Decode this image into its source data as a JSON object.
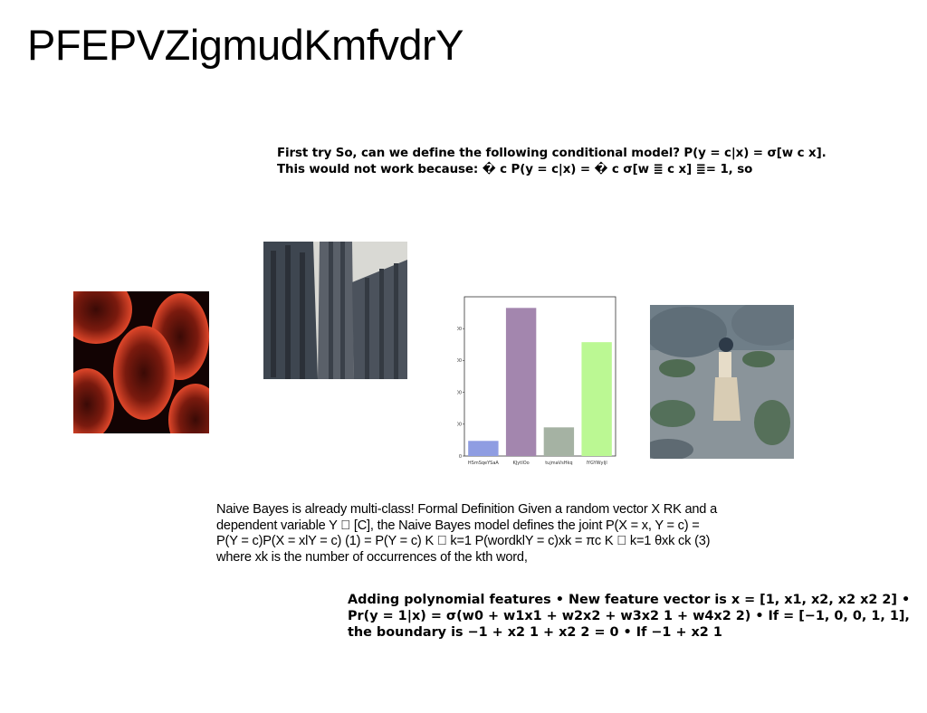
{
  "slide": {
    "title": "PFEPVZigmudKmfvdrY",
    "para1": "First try So, can we define the following conditional model? P(y = c|x) = σ[w c x]. This would not work because: � c P(y = c|x) = � c σ[w ≣ c x] ≣= 1, so",
    "para2": "Naive Bayes is already multi-class! Formal Definition Given a random vector X RK and a dependent variable Y ￿ [C], the Naive Bayes model defines the joint P(X = x, Y = c) = P(Y = c)P(X = xlY = c) (1) = P(Y = c) K ￿ k=1 P(wordklY = c)xk = πc K ￿ k=1 θxk ck (3) where xk is the number of occurrences of the kth word,",
    "para3": "Adding polynomial features • New feature vector is x = [1, x1, x2, x2 x2 2] • Pr(y = 1|x) = σ(w0 + w1x1 + w2x2 + w3x2 1 + w4x2 2) • If = [−1, 0, 0, 1, 1], the boundary is −1 + x2 1 + x2 2 = 0 • If −1 + x2 1"
  },
  "images": {
    "red": "red-ovals-image",
    "cathedral": "cathedral-spires-image",
    "desert": "desert-figure-image"
  },
  "chart_data": {
    "type": "bar",
    "categories": [
      "HSmSqeYSaA",
      "KJytIOo",
      "tujmaVsHkq",
      "lYGYWyIjl"
    ],
    "values": [
      95,
      930,
      180,
      715
    ],
    "colors": [
      "#8f9de2",
      "#a386ae",
      "#a5b2a3",
      "#bbf893"
    ],
    "yticks": [
      0,
      200,
      400,
      600,
      800
    ],
    "ylim": [
      0,
      1000
    ],
    "title": "",
    "xlabel": "",
    "ylabel": ""
  }
}
